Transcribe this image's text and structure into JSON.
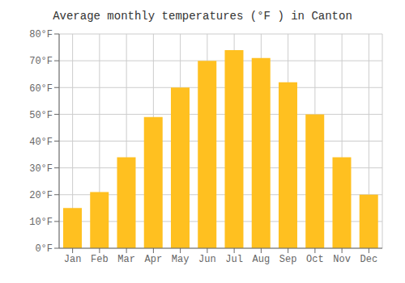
{
  "chart_data": {
    "type": "bar",
    "title": "Average monthly temperatures (°F ) in Canton",
    "categories": [
      "Jan",
      "Feb",
      "Mar",
      "Apr",
      "May",
      "Jun",
      "Jul",
      "Aug",
      "Sep",
      "Oct",
      "Nov",
      "Dec"
    ],
    "values": [
      15,
      21,
      34,
      49,
      60,
      70,
      74,
      71,
      62,
      50,
      34,
      20
    ],
    "color": "#FFC020",
    "ylim": [
      0,
      80
    ],
    "yticks": [
      {
        "value": 0,
        "label": "0°F"
      },
      {
        "value": 10,
        "label": "10°F"
      },
      {
        "value": 20,
        "label": "20°F"
      },
      {
        "value": 30,
        "label": "30°F"
      },
      {
        "value": 40,
        "label": "40°F"
      },
      {
        "value": 50,
        "label": "50°F"
      },
      {
        "value": 60,
        "label": "60°F"
      },
      {
        "value": 70,
        "label": "70°F"
      },
      {
        "value": 80,
        "label": "80°F"
      }
    ],
    "grid": true
  }
}
